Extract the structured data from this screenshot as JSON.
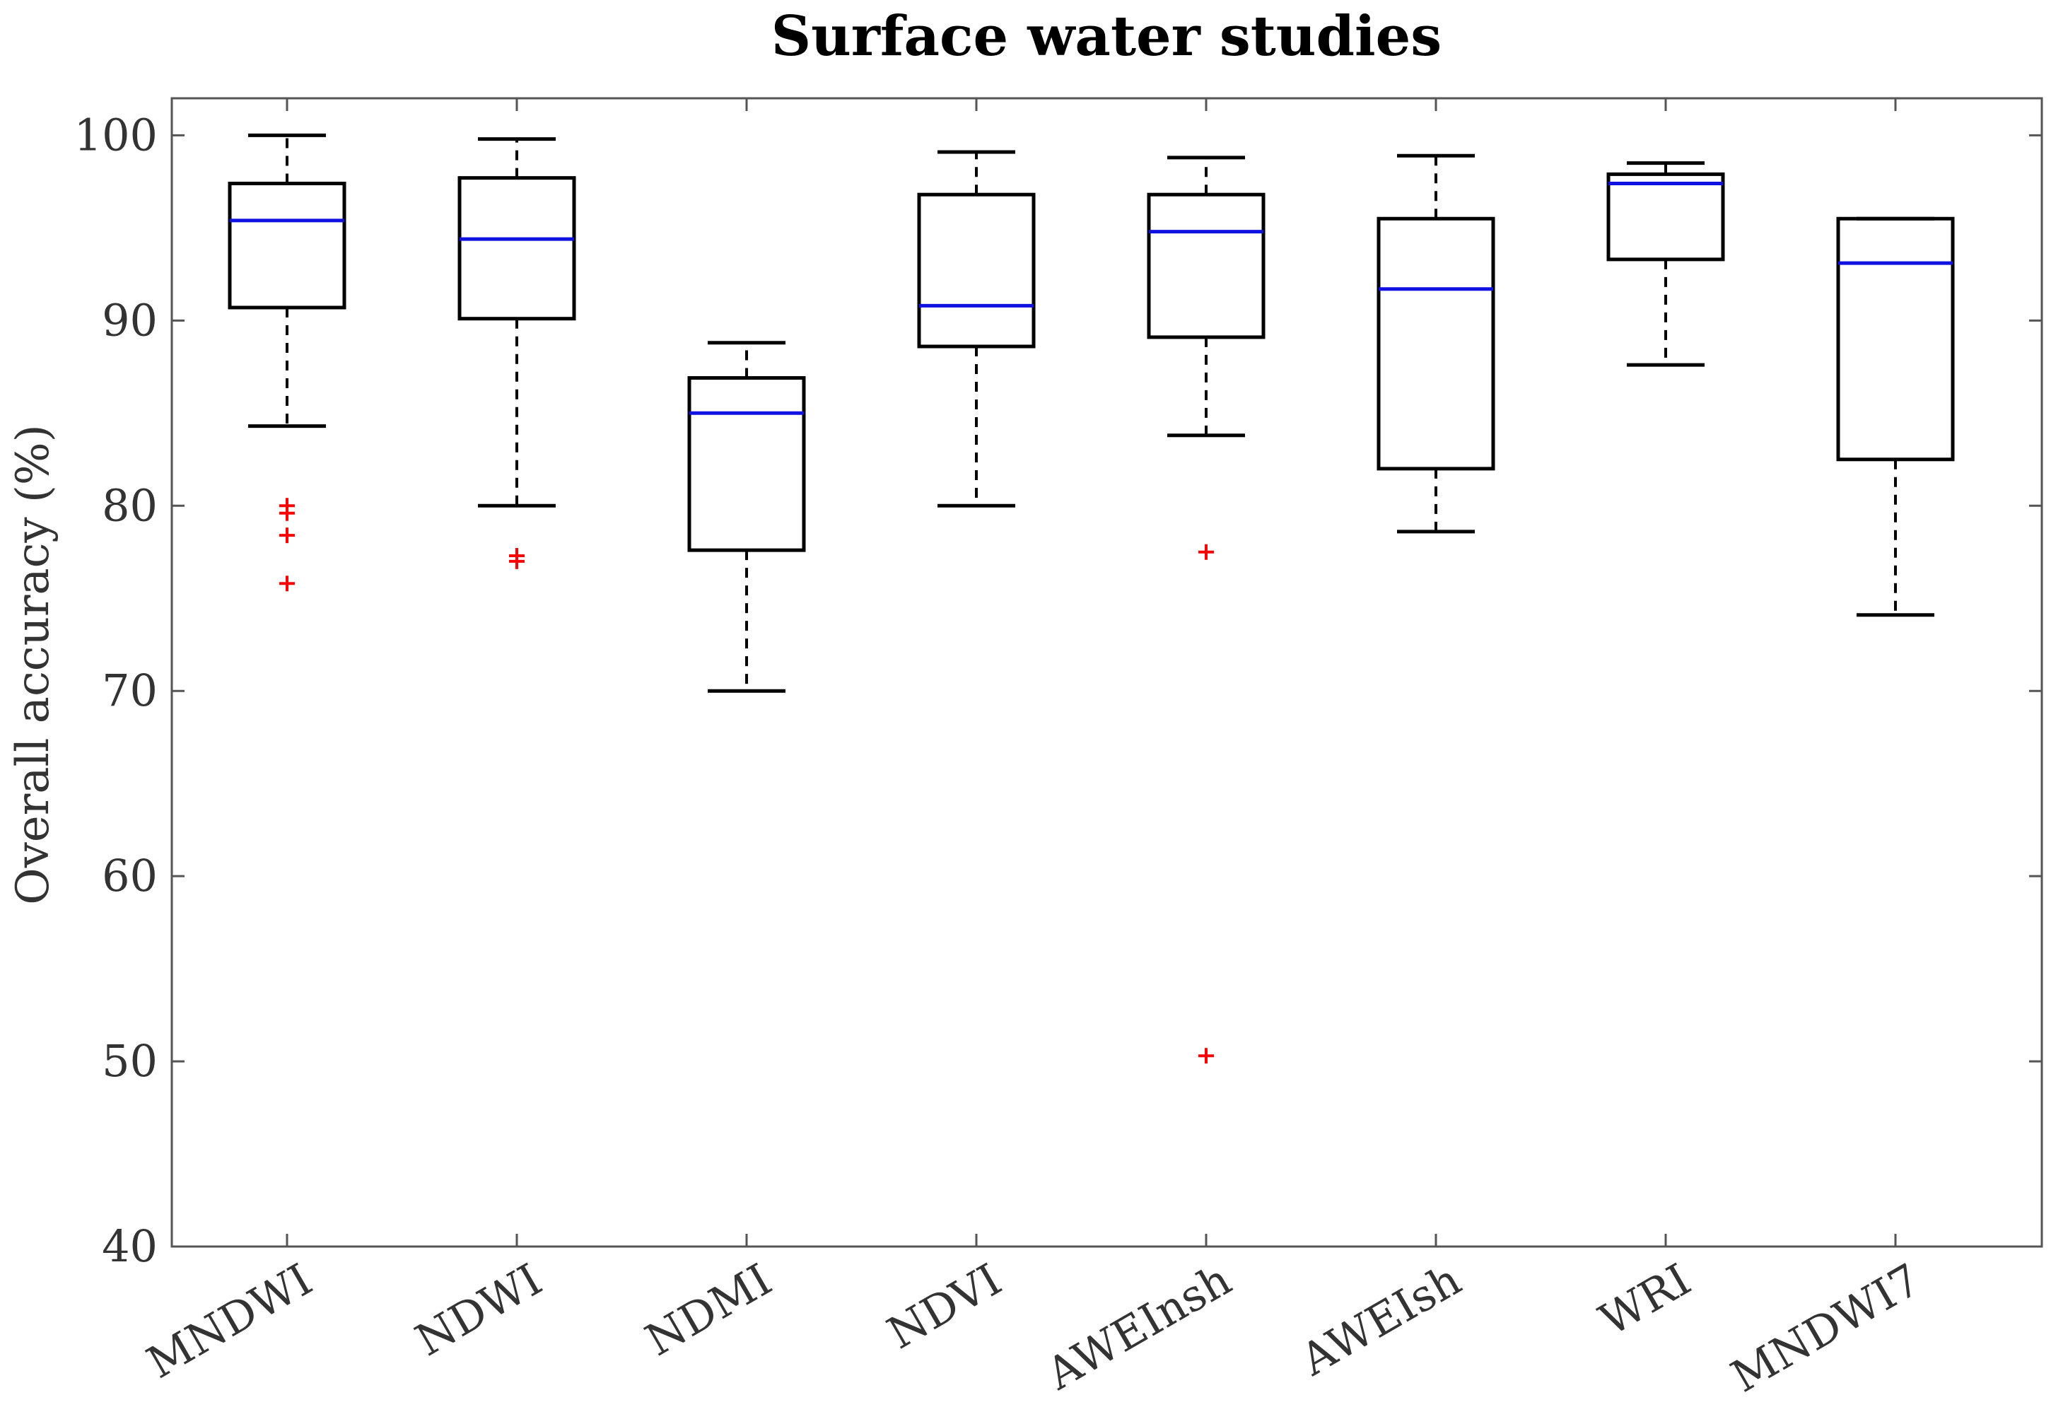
{
  "chart_data": {
    "type": "box",
    "title": "Surface water studies",
    "xlabel": "",
    "ylabel": "Overall accuracy (%)",
    "ylim": [
      40,
      102
    ],
    "yticks": [
      40,
      50,
      60,
      70,
      80,
      90,
      100
    ],
    "grid": false,
    "colors": {
      "box": "#000000",
      "median": "#1010e0",
      "outlier": "#ff0000",
      "frame": "#555555"
    },
    "categories": [
      "MNDWI",
      "NDWI",
      "NDMI",
      "NDVI",
      "AWEInsh",
      "AWEIsh",
      "WRI",
      "MNDWI7"
    ],
    "boxes": [
      {
        "name": "MNDWI",
        "whisker_low": 84.3,
        "q1": 90.7,
        "median": 95.4,
        "q3": 97.4,
        "whisker_high": 100.0,
        "outliers": [
          80.0,
          79.6,
          78.4,
          75.8
        ]
      },
      {
        "name": "NDWI",
        "whisker_low": 80.0,
        "q1": 90.1,
        "median": 94.4,
        "q3": 97.7,
        "whisker_high": 99.8,
        "outliers": [
          77.3,
          77.0
        ]
      },
      {
        "name": "NDMI",
        "whisker_low": 70.0,
        "q1": 77.6,
        "median": 85.0,
        "q3": 86.9,
        "whisker_high": 88.8,
        "outliers": []
      },
      {
        "name": "NDVI",
        "whisker_low": 80.0,
        "q1": 88.6,
        "median": 90.8,
        "q3": 96.8,
        "whisker_high": 99.1,
        "outliers": []
      },
      {
        "name": "AWEInsh",
        "whisker_low": 83.8,
        "q1": 89.1,
        "median": 94.8,
        "q3": 96.8,
        "whisker_high": 98.8,
        "outliers": [
          77.5,
          50.3
        ]
      },
      {
        "name": "AWEIsh",
        "whisker_low": 78.6,
        "q1": 82.0,
        "median": 91.7,
        "q3": 95.5,
        "whisker_high": 98.9,
        "outliers": []
      },
      {
        "name": "WRI",
        "whisker_low": 87.6,
        "q1": 93.3,
        "median": 97.4,
        "q3": 97.9,
        "whisker_high": 98.5,
        "outliers": []
      },
      {
        "name": "MNDWI7",
        "whisker_low": 74.1,
        "q1": 82.5,
        "median": 93.1,
        "q3": 95.5,
        "whisker_high": 95.5,
        "outliers": []
      }
    ]
  }
}
